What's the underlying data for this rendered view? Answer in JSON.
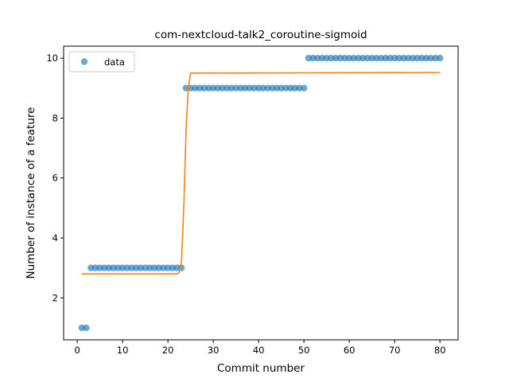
{
  "chart_data": {
    "type": "scatter",
    "title": "com-nextcloud-talk2_coroutine-sigmoid",
    "xlabel": "Commit number",
    "ylabel": "Number of instance of a feature",
    "xlim": [
      -3,
      84
    ],
    "ylim": [
      0.6,
      10.4
    ],
    "xticks": [
      0,
      10,
      20,
      30,
      40,
      50,
      60,
      70,
      80
    ],
    "yticks": [
      2,
      4,
      6,
      8,
      10
    ],
    "legend": {
      "position": "top-left",
      "entries": [
        "data"
      ]
    },
    "grid": false,
    "colors": {
      "data": "#1f77b4",
      "fit": "#ff7f0e"
    },
    "series": [
      {
        "name": "data",
        "kind": "scatter",
        "x": [
          1,
          2,
          3,
          4,
          5,
          6,
          7,
          8,
          9,
          10,
          11,
          12,
          13,
          14,
          15,
          16,
          17,
          18,
          19,
          20,
          21,
          22,
          23,
          24,
          25,
          26,
          27,
          28,
          29,
          30,
          31,
          32,
          33,
          34,
          35,
          36,
          37,
          38,
          39,
          40,
          41,
          42,
          43,
          44,
          45,
          46,
          47,
          48,
          49,
          50,
          51,
          52,
          53,
          54,
          55,
          56,
          57,
          58,
          59,
          60,
          61,
          62,
          63,
          64,
          65,
          66,
          67,
          68,
          69,
          70,
          71,
          72,
          73,
          74,
          75,
          76,
          77,
          78,
          79,
          80
        ],
        "y": [
          1,
          1,
          3,
          3,
          3,
          3,
          3,
          3,
          3,
          3,
          3,
          3,
          3,
          3,
          3,
          3,
          3,
          3,
          3,
          3,
          3,
          3,
          3,
          9,
          9,
          9,
          9,
          9,
          9,
          9,
          9,
          9,
          9,
          9,
          9,
          9,
          9,
          9,
          9,
          9,
          9,
          9,
          9,
          9,
          9,
          9,
          9,
          9,
          9,
          9,
          10,
          10,
          10,
          10,
          10,
          10,
          10,
          10,
          10,
          10,
          10,
          10,
          10,
          10,
          10,
          10,
          10,
          10,
          10,
          10,
          10,
          10,
          10,
          10,
          10,
          10,
          10,
          10,
          10,
          10
        ]
      },
      {
        "kind": "line",
        "x": [
          1,
          22,
          22.5,
          23,
          23.5,
          24,
          24.5,
          25,
          80
        ],
        "y": [
          2.8,
          2.8,
          2.85,
          3.2,
          5.0,
          7.6,
          9.0,
          9.5,
          9.52
        ]
      }
    ]
  }
}
